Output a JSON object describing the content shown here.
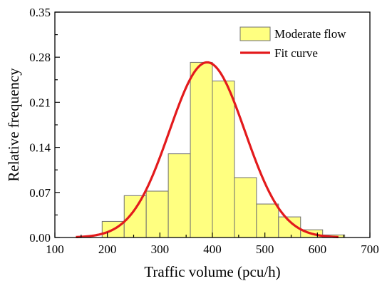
{
  "chart_data": {
    "type": "bar",
    "subtype": "histogram-with-fit",
    "xlabel": "Traffic volume (pcu/h)",
    "ylabel": "Relative frequency",
    "xlim": [
      100,
      700
    ],
    "ylim": [
      0,
      0.35
    ],
    "xticks": [
      100,
      200,
      300,
      400,
      500,
      600,
      700
    ],
    "yticks": [
      "0.00",
      "0.07",
      "0.14",
      "0.21",
      "0.28",
      "0.35"
    ],
    "bin_edges": [
      190,
      232,
      274,
      316,
      358,
      400,
      442,
      484,
      526,
      568,
      610,
      652
    ],
    "series": [
      {
        "name": "Moderate flow",
        "kind": "histogram",
        "color": "#ffff80",
        "edge_color": "#707070",
        "values": [
          0.025,
          0.065,
          0.072,
          0.13,
          0.272,
          0.243,
          0.093,
          0.052,
          0.032,
          0.012,
          0.004
        ]
      },
      {
        "name": "Fit curve",
        "kind": "normal-fit",
        "color": "#e31a1c",
        "mean": 390,
        "sd": 72,
        "peak": 0.272,
        "x_range": [
          140,
          640
        ]
      }
    ],
    "legend_position": "top-right",
    "grid": false
  }
}
